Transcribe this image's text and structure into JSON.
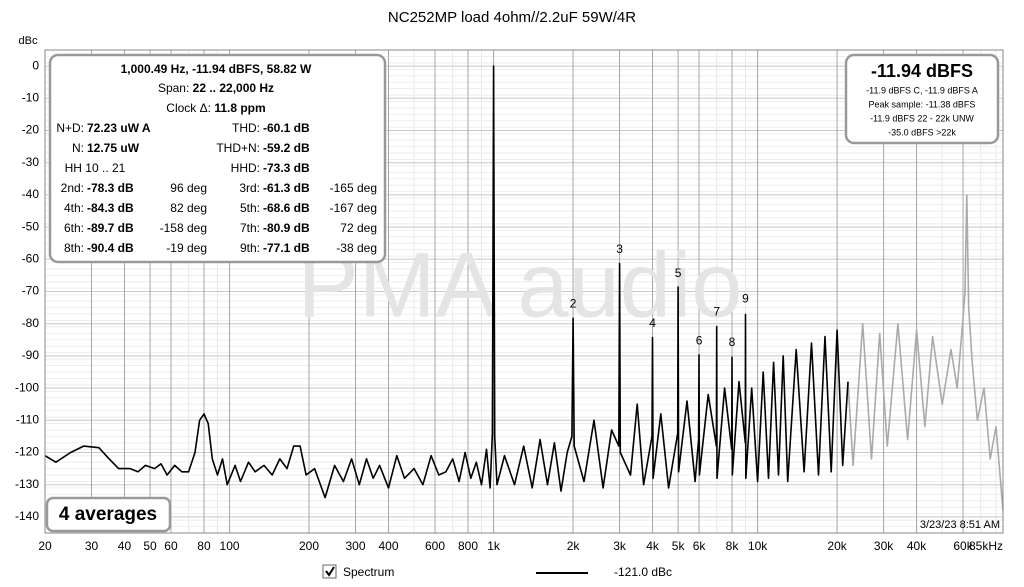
{
  "chart_data": {
    "type": "line",
    "title": "NC252MP load 4ohm//2.2uF 59W/4R",
    "y_label": "dBc",
    "watermark": "PMA audio",
    "log_x": true,
    "grid": true,
    "minor_grid": true,
    "xlim": [
      20,
      85000
    ],
    "ylim": [
      -145,
      5
    ],
    "xticks": [
      20,
      30,
      40,
      50,
      60,
      80,
      100,
      200,
      300,
      400,
      600,
      800,
      {
        "value": 1000,
        "label": "1k"
      },
      {
        "value": 2000,
        "label": "2k"
      },
      {
        "value": 3000,
        "label": "3k"
      },
      {
        "value": 4000,
        "label": "4k"
      },
      {
        "value": 5000,
        "label": "5k"
      },
      {
        "value": 6000,
        "label": "6k"
      },
      {
        "value": 8000,
        "label": "8k"
      },
      {
        "value": 10000,
        "label": "10k"
      },
      {
        "value": 20000,
        "label": "20k"
      },
      {
        "value": 30000,
        "label": "30k"
      },
      {
        "value": 40000,
        "label": "40k"
      },
      {
        "value": 60000,
        "label": "60k"
      },
      {
        "value": 85000,
        "label": "85kHz"
      }
    ],
    "yticks": [
      0,
      -10,
      -20,
      -30,
      -40,
      -50,
      -60,
      -70,
      -80,
      -90,
      -100,
      -110,
      -120,
      -130,
      -140
    ],
    "band_limit": 22000,
    "out_of_band_color": "#aaaaaa",
    "series": [
      {
        "name": "Spectrum",
        "color": "#000000",
        "x": [
          20,
          22,
          25,
          28,
          32,
          35,
          38,
          42,
          45,
          48,
          52,
          55,
          58,
          62,
          66,
          70,
          74,
          77,
          80,
          83,
          86,
          90,
          94,
          98,
          105,
          110,
          118,
          125,
          135,
          145,
          155,
          165,
          175,
          185,
          195,
          210,
          230,
          250,
          270,
          290,
          310,
          330,
          350,
          370,
          400,
          430,
          460,
          500,
          540,
          580,
          620,
          660,
          700,
          740,
          780,
          820,
          860,
          900,
          940,
          970,
          990,
          1000,
          1010,
          1030,
          1100,
          1200,
          1300,
          1400,
          1500,
          1600,
          1700,
          1800,
          1900,
          1980,
          2000,
          2020,
          2200,
          2400,
          2600,
          2800,
          2980,
          3000,
          3020,
          3300,
          3500,
          3700,
          3980,
          4000,
          4020,
          4300,
          4600,
          4980,
          5000,
          5020,
          5400,
          5800,
          5980,
          6000,
          6020,
          6500,
          6980,
          7000,
          7020,
          7500,
          7980,
          8000,
          8020,
          8500,
          8980,
          9000,
          9020,
          9500,
          10000,
          10500,
          11000,
          11500,
          12000,
          12500,
          13000,
          14000,
          15000,
          16000,
          17000,
          18000,
          19000,
          20000,
          21000,
          22000,
          23000,
          25000,
          27000,
          29000,
          31000,
          34000,
          37000,
          40000,
          43000,
          46000,
          50000,
          54000,
          57000,
          60000,
          61000,
          62000,
          63000,
          65000,
          68000,
          72000,
          76000,
          80000,
          85000
        ],
        "values": [
          -121,
          -123,
          -120,
          -118,
          -118.5,
          -122,
          -125,
          -125,
          -126,
          -124,
          -125,
          -123.5,
          -127,
          -124,
          -126,
          -126,
          -120,
          -110,
          -108,
          -111,
          -122,
          -127,
          -122,
          -130,
          -124,
          -129,
          -123,
          -126,
          -124,
          -127,
          -122,
          -125,
          -118,
          -118,
          -127,
          -125,
          -134,
          -124,
          -129,
          -122,
          -130,
          -122,
          -128,
          -124,
          -131,
          -121,
          -128,
          -125,
          -130,
          -121,
          -127,
          -126,
          -122,
          -129,
          -120,
          -128,
          -123,
          -130,
          -119,
          -131,
          -114,
          0,
          -115,
          -130,
          -121,
          -130,
          -118,
          -131,
          -116,
          -130,
          -117,
          -132,
          -120,
          -115,
          -78.3,
          -118,
          -129,
          -110,
          -131,
          -113,
          -118,
          -61.3,
          -120,
          -127,
          -105,
          -130,
          -115,
          -84.3,
          -128,
          -108,
          -131,
          -114,
          -68.6,
          -126,
          -104,
          -129,
          -116,
          -89.7,
          -127,
          -102,
          -118,
          -80.9,
          -128,
          -100,
          -119,
          -90.4,
          -127,
          -98,
          -117,
          -77.1,
          -128,
          -100,
          -129,
          -95,
          -128,
          -92,
          -127,
          -90,
          -129,
          -88,
          -126,
          -86,
          -127,
          -84,
          -126,
          -82,
          -124,
          -98,
          -124,
          -80,
          -122,
          -83,
          -118,
          -80,
          -116,
          -82,
          -112,
          -84,
          -105,
          -88,
          -100,
          -78,
          -70,
          -40,
          -75,
          -92,
          -110,
          -100,
          -122,
          -112,
          -138
        ]
      }
    ],
    "annotations": [
      {
        "text": "2",
        "x": 2000,
        "y": -74
      },
      {
        "text": "3",
        "x": 3000,
        "y": -57
      },
      {
        "text": "4",
        "x": 4000,
        "y": -80
      },
      {
        "text": "5",
        "x": 5000,
        "y": -64.5
      },
      {
        "text": "6",
        "x": 6000,
        "y": -85.5
      },
      {
        "text": "7",
        "x": 7000,
        "y": -76.5
      },
      {
        "text": "8",
        "x": 8000,
        "y": -86
      },
      {
        "text": "9",
        "x": 9000,
        "y": -72.5
      }
    ],
    "readout": {
      "header": "1,000.49 Hz, -11.94 dBFS, 58.82 W",
      "centered": [
        {
          "label": "Span: ",
          "value": "22 .. 22,000 Hz"
        },
        {
          "label": "Clock Δ: ",
          "value": "11.8 ppm"
        }
      ],
      "rows": [
        {
          "left": {
            "label": "N+D:",
            "value": "72.23 uW A"
          },
          "right": {
            "label": "THD:",
            "value": "-60.1 dB"
          }
        },
        {
          "left": {
            "label": "N:",
            "value": "12.75 uW"
          },
          "right": {
            "label": "THD+N:",
            "value": "-59.2 dB"
          }
        },
        {
          "left": {
            "label": "HH 10 .. 21"
          },
          "right": {
            "label": "HHD:",
            "value": "-73.3 dB"
          }
        },
        {
          "left": {
            "label": "2nd:",
            "value": "-78.3 dB"
          },
          "left_phase": "96 deg",
          "right": {
            "label": "3rd:",
            "value": "-61.3 dB"
          },
          "right_phase": "-165 deg"
        },
        {
          "left": {
            "label": "4th:",
            "value": "-84.3 dB"
          },
          "left_phase": "82 deg",
          "right": {
            "label": "5th:",
            "value": "-68.6 dB"
          },
          "right_phase": "-167 deg"
        },
        {
          "left": {
            "label": "6th:",
            "value": "-89.7 dB"
          },
          "left_phase": "-158 deg",
          "right": {
            "label": "7th:",
            "value": "-80.9 dB"
          },
          "right_phase": "72 deg"
        },
        {
          "left": {
            "label": "8th:",
            "value": "-90.4 dB"
          },
          "left_phase": "-19 deg",
          "right": {
            "label": "9th:",
            "value": "-77.1 dB"
          },
          "right_phase": "-38 deg"
        }
      ]
    },
    "level_box": {
      "title": "-11.94 dBFS",
      "lines": [
        "-11.9 dBFS C, -11.9 dBFS A",
        "Peak sample: -11.38 dBFS",
        "-11.9 dBFS 22 - 22k UNW",
        "-35.0 dBFS >22k"
      ]
    },
    "averages": "4 averages",
    "timestamp": "3/23/23 8:51 AM",
    "legend": {
      "label": "Spectrum",
      "checked": true,
      "value_text": "-121.0 dBc"
    }
  }
}
